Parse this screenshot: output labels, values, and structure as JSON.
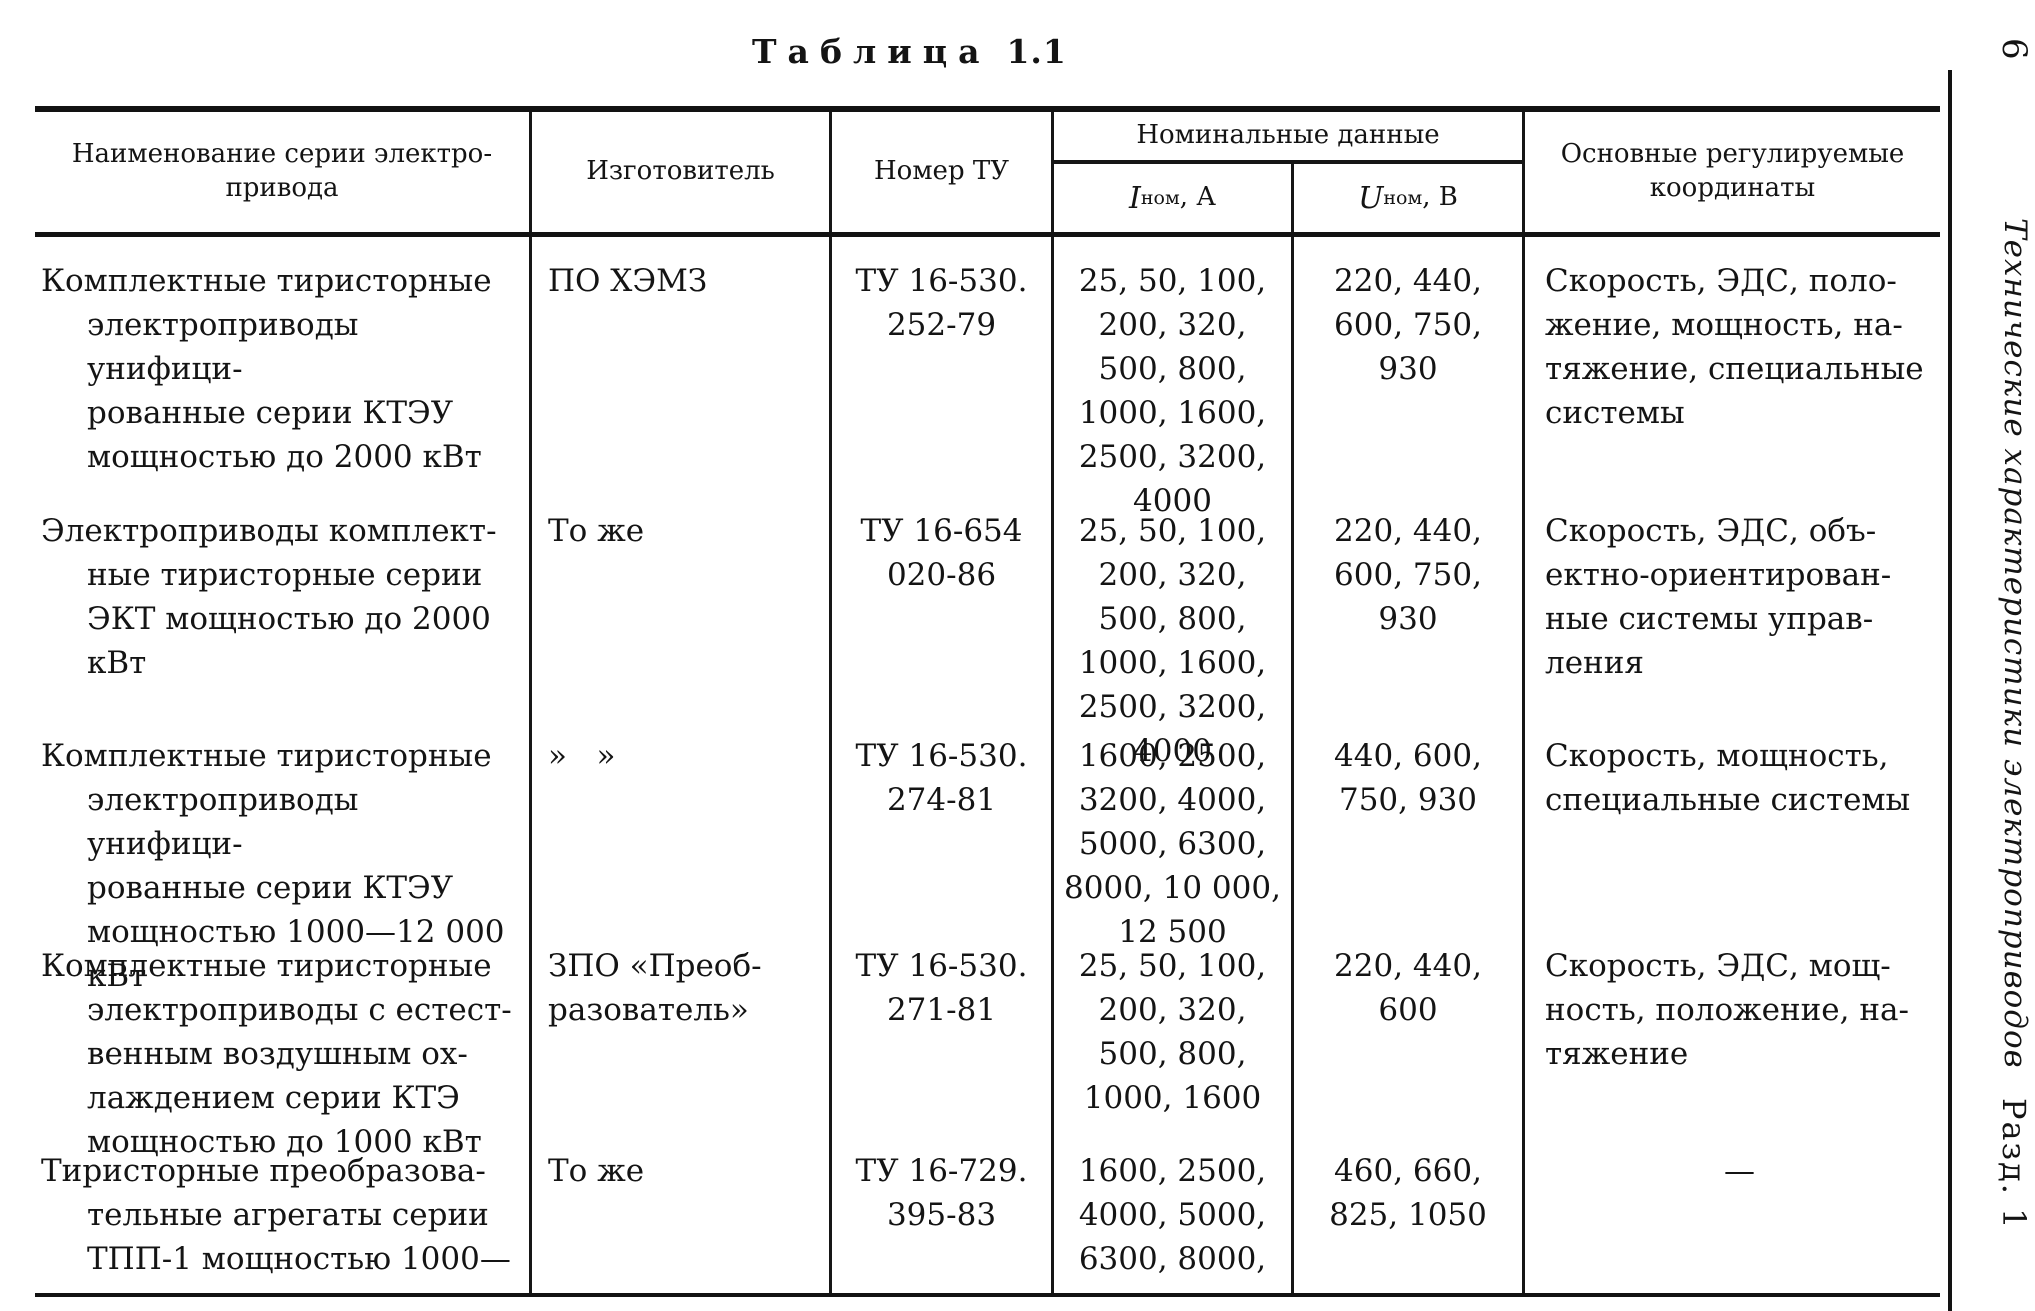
{
  "page": {
    "title": {
      "word": "Таблица",
      "number": "1.1"
    }
  },
  "sidebar": {
    "page_number": "6",
    "running_title": "Технические характеристики электроприводов",
    "section": "Разд. 1"
  },
  "table": {
    "headers": {
      "series_name": "Наименование серии электро-\nпривода",
      "manufacturer": "Изготовитель",
      "tu_number": "Номер ТУ",
      "nominal_data": "Номинальные данные",
      "i_nom": {
        "symbol": "I",
        "sub": "ном",
        "unit": ", А"
      },
      "u_nom": {
        "symbol": "U",
        "sub": "ном",
        "unit": ", В"
      },
      "coordinates": "Основные регулируемые\nкоординаты"
    },
    "rows": [
      {
        "name": "Комплектные тиристорные\nэлектроприводы унифици-\nрованные серии КТЭУ\nмощностью до 2000 кВт",
        "manufacturer": "ПО ХЭМЗ",
        "tu": "ТУ 16-530.\n252-79",
        "i_nom": "25, 50, 100,\n200, 320,\n500, 800,\n1000, 1600,\n2500, 3200,\n4000",
        "u_nom": "220, 440,\n600, 750,\n930",
        "coordinates": "Скорость, ЭДС, поло-\nжение, мощность, на-\nтяжение, специальные\nсистемы"
      },
      {
        "name": "Электроприводы комплект-\nные тиристорные серии\nЭКТ мощностью до 2000\nкВт",
        "manufacturer": "То же",
        "tu": "ТУ 16-654\n020-86",
        "i_nom": "25, 50, 100,\n200, 320,\n500, 800,\n1000, 1600,\n2500, 3200,\n4000",
        "u_nom": "220, 440,\n600, 750,\n930",
        "coordinates": "Скорость, ЭДС, объ-\nектно-ориентирован-\nные системы управ-\nления"
      },
      {
        "name": "Комплектные тиристорные\nэлектроприводы унифици-\nрованные серии КТЭУ\nмощностью 1000—12 000\nкВт",
        "manufacturer": "»   »",
        "tu": "ТУ 16-530.\n274-81",
        "i_nom": "1600, 2500,\n3200, 4000,\n5000, 6300,\n8000, 10 000,\n12 500",
        "u_nom": "440, 600,\n750, 930",
        "coordinates": "Скорость, мощность,\nспециальные системы"
      },
      {
        "name": "Комплектные тиристорные\nэлектроприводы с естест-\nвенным воздушным ох-\nлаждением серии КТЭ\nмощностью до 1000 кВт",
        "manufacturer": "ЗПО «Преоб-\nразователь»",
        "tu": "ТУ 16-530.\n271-81",
        "i_nom": "25, 50, 100,\n200, 320,\n500, 800,\n1000, 1600",
        "u_nom": "220, 440,\n600",
        "coordinates": "Скорость, ЭДС, мощ-\nность, положение, на-\nтяжение"
      },
      {
        "name": "Тиристорные преобразова-\nтельные агрегаты серии\nТПП-1 мощностью 1000—",
        "manufacturer": "То же",
        "tu": "ТУ 16-729.\n395-83",
        "i_nom": "1600, 2500,\n4000, 5000,\n6300, 8000,",
        "u_nom": "460, 660,\n825, 1050",
        "coordinates": "—"
      }
    ]
  }
}
